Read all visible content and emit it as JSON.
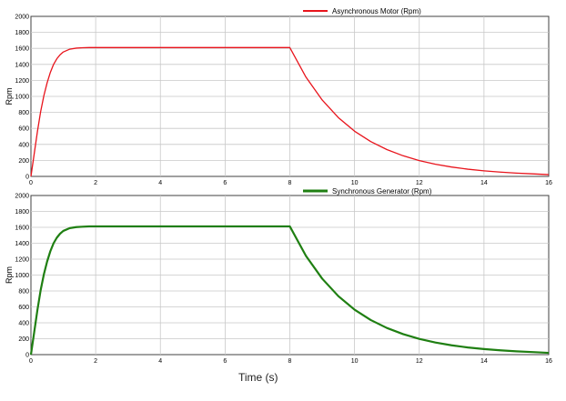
{
  "chart_data": [
    {
      "type": "line",
      "ylabel": "Rpm",
      "xlim": [
        0,
        16
      ],
      "ylim": [
        0,
        2000
      ],
      "grid": true,
      "legend_position": "top-right",
      "x_ticks": [
        "0",
        "2",
        "4",
        "6",
        "8",
        "10",
        "12",
        "14",
        "16"
      ],
      "y_ticks": [
        "0",
        "200",
        "400",
        "600",
        "800",
        "1000",
        "1200",
        "1400",
        "1600",
        "1800",
        "2000"
      ],
      "series": [
        {
          "name": "Asynchronous Motor (Rpm)",
          "color": "#e8141c",
          "x": [
            0,
            0.1,
            0.2,
            0.3,
            0.4,
            0.5,
            0.6,
            0.7,
            0.8,
            0.9,
            1.0,
            1.2,
            1.4,
            1.6,
            1.8,
            2.0,
            4,
            6,
            8.0,
            8.5,
            9.0,
            9.5,
            10.0,
            10.5,
            11.0,
            11.5,
            12.0,
            12.5,
            13.0,
            13.5,
            14.0,
            14.5,
            15.0,
            15.5,
            16.0
          ],
          "values": [
            0,
            280,
            560,
            810,
            1010,
            1170,
            1300,
            1400,
            1470,
            1520,
            1555,
            1590,
            1603,
            1608,
            1610,
            1610,
            1610,
            1610,
            1610,
            1240,
            955,
            735,
            565,
            435,
            335,
            258,
            198,
            152,
            117,
            90,
            70,
            54,
            41,
            32,
            22
          ]
        }
      ]
    },
    {
      "type": "line",
      "ylabel": "Rpm",
      "xlabel": "Time (s)",
      "xlim": [
        0,
        16
      ],
      "ylim": [
        0,
        2000
      ],
      "grid": true,
      "legend_position": "top-right",
      "x_ticks": [
        "0",
        "2",
        "4",
        "6",
        "8",
        "10",
        "12",
        "14",
        "16"
      ],
      "y_ticks": [
        "0",
        "200",
        "400",
        "600",
        "800",
        "1000",
        "1200",
        "1400",
        "1600",
        "1800",
        "2000"
      ],
      "series": [
        {
          "name": "Synchronous Generator (Rpm)",
          "color": "#1f7f12",
          "x": [
            0,
            0.1,
            0.2,
            0.3,
            0.4,
            0.5,
            0.6,
            0.7,
            0.8,
            0.9,
            1.0,
            1.2,
            1.4,
            1.6,
            1.8,
            2.0,
            4,
            6,
            8.0,
            8.5,
            9.0,
            9.5,
            10.0,
            10.5,
            11.0,
            11.5,
            12.0,
            12.5,
            13.0,
            13.5,
            14.0,
            14.5,
            15.0,
            15.5,
            16.0
          ],
          "values": [
            0,
            280,
            560,
            810,
            1010,
            1170,
            1300,
            1400,
            1470,
            1520,
            1555,
            1590,
            1603,
            1608,
            1612,
            1612,
            1612,
            1612,
            1612,
            1240,
            955,
            735,
            565,
            435,
            335,
            258,
            198,
            152,
            117,
            90,
            70,
            54,
            41,
            32,
            22
          ]
        }
      ]
    }
  ]
}
